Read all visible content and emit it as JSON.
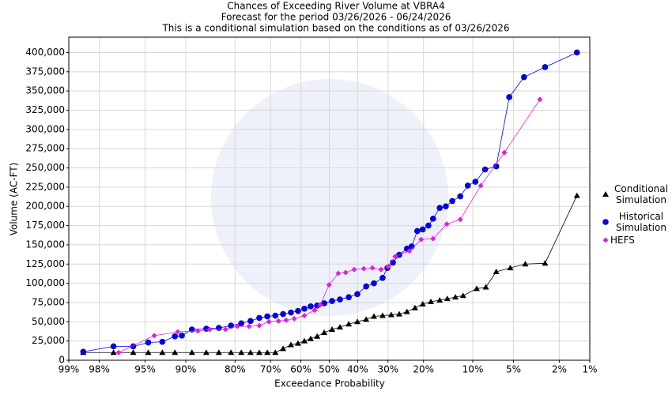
{
  "chart_data": {
    "type": "exceedance",
    "title": "Chances of Exceeding River Volume at VBRA4",
    "subtitle": "Forecast for the period 03/26/2026 - 06/24/2026",
    "note": "This is a conditional simulation based on the conditions as of 03/26/2026",
    "x_label": "Exceedance Probability",
    "y_label": "Volume (AC-FT)",
    "xscale": "probit",
    "grid": true,
    "legend": "right",
    "xlim": [
      99,
      1
    ],
    "ylim": [
      0,
      420000
    ],
    "xticks": [
      {
        "value": 99,
        "label": "99%"
      },
      {
        "value": 98,
        "label": "98%"
      },
      {
        "value": 95,
        "label": "95%"
      },
      {
        "value": 90,
        "label": "90%"
      },
      {
        "value": 80,
        "label": "80%"
      },
      {
        "value": 70,
        "label": "70%"
      },
      {
        "value": 60,
        "label": "60%"
      },
      {
        "value": 50,
        "label": "50%"
      },
      {
        "value": 40,
        "label": "40%"
      },
      {
        "value": 30,
        "label": "30%"
      },
      {
        "value": 20,
        "label": "20%"
      },
      {
        "value": 10,
        "label": "10%"
      },
      {
        "value": 5,
        "label": "5%"
      },
      {
        "value": 2,
        "label": "2%"
      },
      {
        "value": 1,
        "label": "1%"
      }
    ],
    "yticks": [
      0,
      {
        "value": 25000,
        "label": "25,000"
      },
      {
        "value": 50000,
        "label": "50,000"
      },
      {
        "value": 75000,
        "label": "75,000"
      },
      {
        "value": 100000,
        "label": "100,000"
      },
      {
        "value": 125000,
        "label": "125,000"
      },
      {
        "value": 150000,
        "label": "150,000"
      },
      {
        "value": 175000,
        "label": "175,000"
      },
      {
        "value": 200000,
        "label": "200,000"
      },
      {
        "value": 225000,
        "label": "225,000"
      },
      {
        "value": 250000,
        "label": "250,000"
      },
      {
        "value": 275000,
        "label": "275,000"
      },
      {
        "value": 300000,
        "label": "300,000"
      },
      {
        "value": 325000,
        "label": "325,000"
      },
      {
        "value": 350000,
        "label": "350,000"
      },
      {
        "value": 375000,
        "label": "375,000"
      },
      {
        "value": 400000,
        "label": "400,000"
      }
    ],
    "series": [
      {
        "name": "Conditional Simulation",
        "color": "#000000",
        "marker": "triangle",
        "x": [
          98.6,
          97.3,
          96.0,
          94.7,
          93.2,
          91.6,
          89.0,
          86.4,
          83.8,
          81.0,
          78.4,
          75.9,
          73.4,
          71.0,
          68.5,
          66.0,
          63.4,
          61.0,
          58.8,
          56.6,
          54.3,
          51.8,
          49.0,
          46.2,
          43.1,
          40.1,
          37.1,
          34.5,
          31.7,
          29.0,
          26.6,
          24.4,
          22.2,
          20.2,
          18.2,
          16.2,
          14.6,
          13.0,
          11.6,
          9.4,
          8.1,
          6.8,
          5.3,
          4.0,
          2.7,
          1.35
        ],
        "values": [
          10000,
          10000,
          10000,
          10000,
          10000,
          10000,
          10000,
          10000,
          10000,
          10000,
          10000,
          10000,
          10000,
          10000,
          10000,
          15000,
          20000,
          22000,
          25000,
          28000,
          31000,
          36000,
          40000,
          43000,
          47000,
          50000,
          53000,
          57000,
          58000,
          59000,
          60000,
          63000,
          68000,
          73000,
          76000,
          78000,
          80000,
          82000,
          84000,
          93000,
          95000,
          115000,
          120000,
          125000,
          126000,
          214000
        ]
      },
      {
        "name": "Historical Simulation",
        "color": "#0000ff",
        "marker": "circle",
        "x": [
          98.6,
          97.3,
          96.0,
          94.7,
          93.2,
          91.6,
          90.6,
          89.0,
          86.4,
          83.8,
          81.0,
          78.4,
          75.9,
          73.4,
          71.0,
          68.5,
          66.0,
          63.4,
          61.0,
          58.8,
          56.6,
          54.3,
          51.8,
          49.0,
          46.2,
          43.1,
          40.1,
          37.1,
          34.5,
          31.7,
          30.2,
          28.5,
          26.6,
          24.4,
          23.1,
          21.6,
          20.2,
          18.8,
          17.7,
          16.2,
          14.9,
          13.6,
          12.1,
          10.8,
          9.6,
          8.2,
          6.8,
          5.4,
          4.1,
          2.7,
          1.35
        ],
        "values": [
          11000,
          18000,
          18000,
          23000,
          24000,
          31000,
          32000,
          40000,
          41000,
          42000,
          45000,
          48000,
          51000,
          55000,
          57000,
          58000,
          60000,
          62000,
          64000,
          67000,
          70000,
          71000,
          74000,
          77000,
          79000,
          82000,
          86000,
          96000,
          100000,
          107000,
          120000,
          127000,
          137000,
          145000,
          148000,
          168000,
          170000,
          175000,
          184000,
          198000,
          200000,
          207000,
          213000,
          227000,
          232000,
          248000,
          252000,
          342000,
          368000,
          381000,
          400000
        ]
      },
      {
        "name": "HEFS",
        "color": "#e020e0",
        "marker": "diamond",
        "x": [
          97.0,
          94.1,
          91.2,
          88.0,
          85.7,
          82.3,
          79.4,
          76.3,
          73.4,
          70.5,
          67.5,
          65.0,
          62.3,
          58.8,
          55.2,
          53.2,
          50.1,
          46.8,
          44.2,
          41.2,
          37.9,
          35.0,
          32.2,
          29.9,
          27.8,
          23.7,
          20.6,
          17.7,
          14.7,
          12.1,
          8.8,
          5.9,
          3.0
        ],
        "values": [
          10000,
          32000,
          37000,
          38000,
          40000,
          40000,
          44000,
          44000,
          45000,
          50000,
          51000,
          52000,
          54000,
          58000,
          65000,
          72000,
          98000,
          113000,
          114000,
          118000,
          119000,
          120000,
          118000,
          122000,
          135000,
          142000,
          157000,
          158000,
          177000,
          183000,
          227000,
          270000,
          339000
        ]
      }
    ]
  }
}
